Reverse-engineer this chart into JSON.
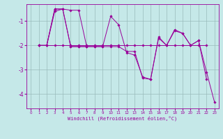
{
  "background_color": "#c5e8e8",
  "line_color": "#990099",
  "grid_color": "#99bbbb",
  "xlabel": "Windchill (Refroidissement éolien,°C)",
  "xlim": [
    -0.5,
    23.5
  ],
  "ylim": [
    -4.6,
    -0.3
  ],
  "yticks": [
    -4,
    -3,
    -2,
    -1
  ],
  "ytick_labels": [
    "-4",
    "-3",
    "-2",
    "-1"
  ],
  "xticks": [
    0,
    1,
    2,
    3,
    4,
    5,
    6,
    7,
    8,
    9,
    10,
    11,
    12,
    13,
    14,
    15,
    16,
    17,
    18,
    19,
    20,
    21,
    22,
    23
  ],
  "series": [
    {
      "x": [
        1,
        2,
        3,
        4,
        5,
        6,
        7,
        8,
        9,
        10,
        11,
        12,
        13,
        14,
        15,
        16,
        17,
        18,
        19,
        20,
        21,
        22,
        23
      ],
      "y": [
        -2.0,
        -2.0,
        -0.6,
        -0.5,
        -0.55,
        -0.55,
        -2.05,
        -2.05,
        -2.05,
        -0.8,
        -1.15,
        -2.3,
        -2.4,
        -3.3,
        -3.4,
        -1.7,
        -2.0,
        -1.4,
        -1.5,
        -2.0,
        -1.8,
        -3.1,
        -4.35
      ]
    },
    {
      "x": [
        1,
        2,
        3,
        4,
        5,
        6,
        7,
        8,
        9,
        10,
        11,
        12,
        13,
        14,
        15,
        16,
        17,
        18,
        19,
        20,
        21,
        22
      ],
      "y": [
        -2.0,
        -2.0,
        -0.5,
        -0.5,
        -2.05,
        -2.05,
        -2.05,
        -2.05,
        -2.05,
        -2.05,
        -2.05,
        -2.25,
        -2.25,
        -3.35,
        -3.4,
        -1.65,
        -2.0,
        -1.35,
        -1.5,
        -2.0,
        -1.8,
        -3.4
      ]
    },
    {
      "x": [
        1,
        2,
        3,
        4,
        5,
        6,
        7
      ],
      "y": [
        -2.0,
        -2.0,
        -0.5,
        -0.5,
        -2.05,
        -2.05,
        -2.05
      ]
    },
    {
      "x": [
        1,
        2,
        3,
        4,
        5,
        6,
        7,
        8,
        9,
        10,
        11,
        12,
        13,
        14,
        15,
        16,
        17,
        18,
        19,
        20,
        21,
        22
      ],
      "y": [
        -2.0,
        -2.0,
        -2.0,
        -2.0,
        -2.0,
        -2.0,
        -2.0,
        -2.0,
        -2.0,
        -2.0,
        -2.0,
        -2.0,
        -2.0,
        -2.0,
        -2.0,
        -2.0,
        -2.0,
        -2.0,
        -2.0,
        -2.0,
        -2.0,
        -2.0
      ]
    }
  ]
}
